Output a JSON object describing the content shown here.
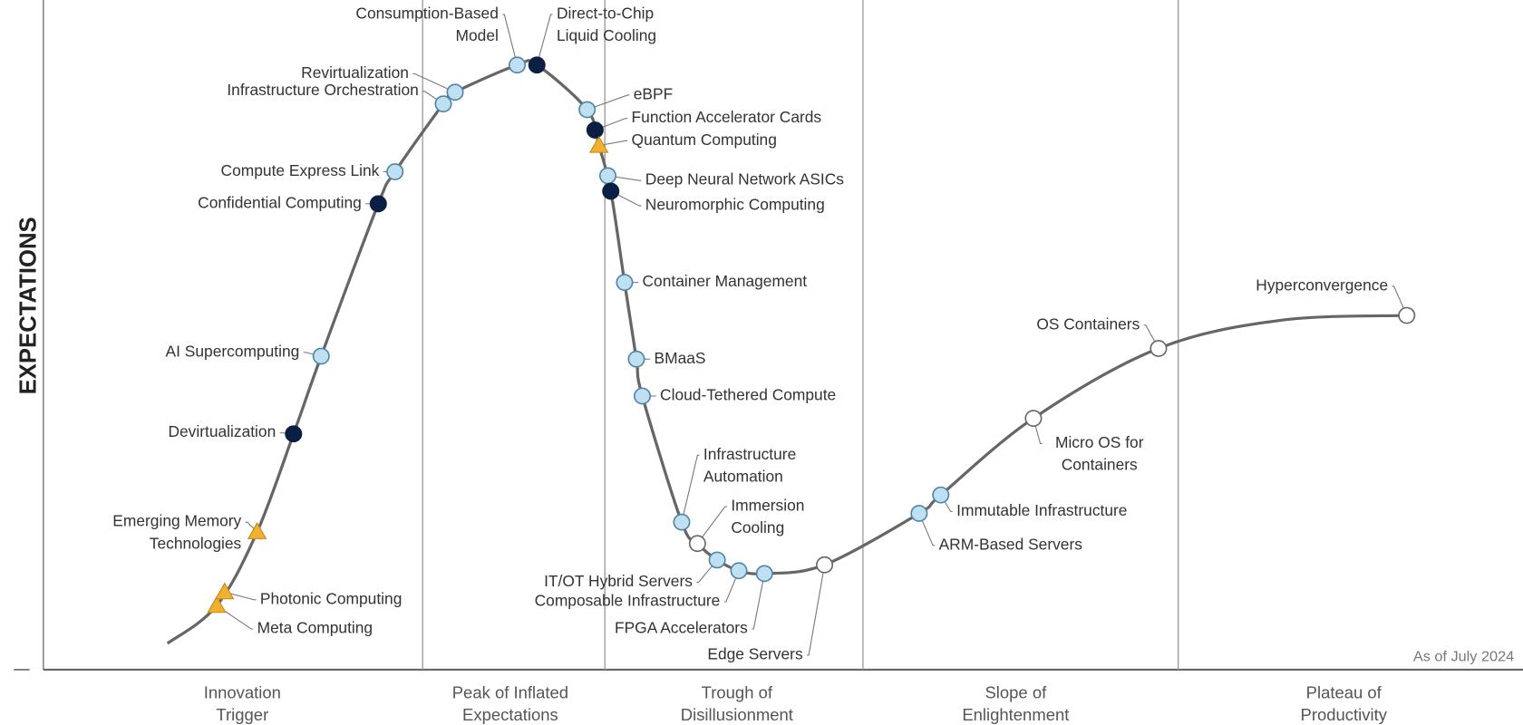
{
  "y_axis_label": "EXPECTATIONS",
  "as_of": "As of July 2024",
  "phases": [
    [
      "Innovation",
      "Trigger"
    ],
    [
      "Peak of Inflated",
      "Expectations"
    ],
    [
      "Trough of",
      "Disillusionment"
    ],
    [
      "Slope of",
      "Enlightenment"
    ],
    [
      "Plateau of",
      "Productivity"
    ]
  ],
  "nodes": [
    {
      "label": [
        "Meta Computing"
      ],
      "marker": "triangle"
    },
    {
      "label": [
        "Photonic Computing"
      ],
      "marker": "triangle"
    },
    {
      "label": [
        "Emerging Memory",
        "Technologies"
      ],
      "marker": "triangle"
    },
    {
      "label": [
        "Devirtualization"
      ],
      "marker": "dark"
    },
    {
      "label": [
        "AI Supercomputing"
      ],
      "marker": "light"
    },
    {
      "label": [
        "Confidential Computing"
      ],
      "marker": "dark"
    },
    {
      "label": [
        "Compute Express Link"
      ],
      "marker": "light"
    },
    {
      "label": [
        "Infrastructure Orchestration"
      ],
      "marker": "light"
    },
    {
      "label": [
        "Revirtualization"
      ],
      "marker": "light"
    },
    {
      "label": [
        "Consumption-Based",
        "Model"
      ],
      "marker": "light"
    },
    {
      "label": [
        "Direct-to-Chip",
        "Liquid Cooling"
      ],
      "marker": "dark"
    },
    {
      "label": [
        "eBPF"
      ],
      "marker": "light"
    },
    {
      "label": [
        "Function Accelerator Cards"
      ],
      "marker": "dark"
    },
    {
      "label": [
        "Quantum Computing"
      ],
      "marker": "triangle"
    },
    {
      "label": [
        "Deep Neural Network ASICs"
      ],
      "marker": "light"
    },
    {
      "label": [
        "Neuromorphic Computing"
      ],
      "marker": "dark"
    },
    {
      "label": [
        "Container Management"
      ],
      "marker": "light"
    },
    {
      "label": [
        "BMaaS"
      ],
      "marker": "light"
    },
    {
      "label": [
        "Cloud-Tethered Compute"
      ],
      "marker": "light"
    },
    {
      "label": [
        "Infrastructure",
        "Automation"
      ],
      "marker": "light"
    },
    {
      "label": [
        "Immersion",
        "Cooling"
      ],
      "marker": "white"
    },
    {
      "label": [
        "IT/OT Hybrid Servers"
      ],
      "marker": "light"
    },
    {
      "label": [
        "Composable Infrastructure"
      ],
      "marker": "light"
    },
    {
      "label": [
        "FPGA Accelerators"
      ],
      "marker": "light"
    },
    {
      "label": [
        "Edge Servers"
      ],
      "marker": "white"
    },
    {
      "label": [
        "ARM-Based Servers"
      ],
      "marker": "light"
    },
    {
      "label": [
        "Immutable Infrastructure"
      ],
      "marker": "light"
    },
    {
      "label": [
        "Micro OS for",
        "Containers"
      ],
      "marker": "white"
    },
    {
      "label": [
        "OS Containers"
      ],
      "marker": "white"
    },
    {
      "label": [
        "Hyperconvergence"
      ],
      "marker": "white"
    }
  ]
}
